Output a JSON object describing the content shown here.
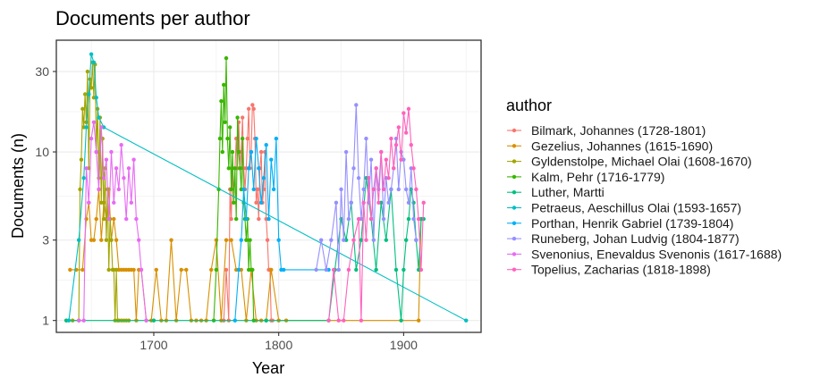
{
  "chart_data": {
    "type": "line",
    "title": "Documents per author",
    "xlabel": "Year",
    "ylabel": "Documents (n)",
    "x_scale": "linear",
    "y_scale": "log10",
    "xlim": [
      1622,
      1962
    ],
    "ylim": [
      0.85,
      46
    ],
    "x_ticks": [
      1700,
      1800,
      1900
    ],
    "y_ticks": [
      1,
      3,
      10,
      30
    ],
    "grid": true,
    "legend_title": "author",
    "legend_position": "right",
    "series": [
      {
        "name": "Bilmark, Johannes (1728-1801)",
        "color": "#F8766D",
        "x": [
          1756,
          1758,
          1760,
          1761,
          1762,
          1763,
          1764,
          1765,
          1766,
          1767,
          1768,
          1769,
          1770,
          1771,
          1772,
          1773,
          1774,
          1775,
          1776,
          1777,
          1778,
          1779,
          1780,
          1781,
          1782,
          1783,
          1784,
          1785,
          1786,
          1787,
          1788,
          1789,
          1790,
          1791,
          1792,
          1793,
          1794,
          1795
        ],
        "y": [
          1,
          2,
          1,
          6,
          4,
          8,
          5,
          8,
          12,
          8,
          15,
          8,
          10,
          16,
          8,
          6,
          8,
          12,
          18,
          8,
          10,
          19,
          18,
          12,
          5,
          6,
          4,
          8,
          10,
          5,
          6,
          10,
          4,
          3,
          2,
          2,
          1,
          1
        ]
      },
      {
        "name": "Gezelius, Johannes (1615-1690)",
        "color": "#D89000",
        "x": [
          1633,
          1638,
          1643,
          1646,
          1648,
          1650,
          1652,
          1654,
          1656,
          1658,
          1660,
          1662,
          1664,
          1666,
          1668,
          1670,
          1672,
          1674,
          1676,
          1678,
          1680,
          1682,
          1684,
          1686,
          1688,
          1690,
          1694,
          1698,
          1702,
          1706,
          1710,
          1714,
          1718,
          1722,
          1726,
          1730,
          1734,
          1738,
          1742,
          1746,
          1750,
          1754,
          1758,
          1762,
          1766,
          1770,
          1774,
          1778,
          1782,
          1786,
          1790,
          1794,
          1800,
          1806,
          1912,
          1914
        ],
        "y": [
          2,
          2,
          2,
          4,
          5,
          3,
          3,
          4,
          6,
          3,
          5,
          4,
          6,
          3,
          4,
          3,
          2,
          2,
          2,
          2,
          2,
          2,
          2,
          1,
          2,
          2,
          1,
          1,
          2,
          1,
          1,
          3,
          1,
          2,
          2,
          1,
          1,
          1,
          1,
          2,
          3,
          1,
          3,
          3,
          2,
          2,
          1,
          2,
          1,
          1,
          1,
          2,
          1,
          1,
          1,
          4
        ]
      },
      {
        "name": "Gyldenstolpe, Michael Olai (1608-1670)",
        "color": "#A3A500",
        "x": [
          1630,
          1635,
          1640,
          1641,
          1642,
          1643,
          1644,
          1645,
          1646,
          1647,
          1648,
          1649,
          1650,
          1651,
          1652,
          1653,
          1654,
          1655,
          1656,
          1657,
          1658,
          1659,
          1660,
          1661,
          1662,
          1663,
          1664,
          1665,
          1666,
          1667,
          1668,
          1669,
          1670,
          1671,
          1672,
          1674,
          1676,
          1678,
          1680
        ],
        "y": [
          1,
          1,
          1,
          6,
          9,
          18,
          14,
          22,
          15,
          30,
          8,
          27,
          24,
          34,
          21,
          33,
          10,
          18,
          7,
          16,
          5,
          12,
          4,
          8,
          3,
          6,
          2,
          4,
          3,
          2,
          2,
          1,
          2,
          1,
          1,
          1,
          1,
          1,
          1
        ]
      },
      {
        "name": "Kalm, Pehr (1716-1779)",
        "color": "#39B600",
        "x": [
          1748,
          1750,
          1752,
          1753,
          1754,
          1755,
          1756,
          1757,
          1758,
          1759,
          1760,
          1761,
          1762,
          1763,
          1764,
          1765,
          1766,
          1767,
          1768,
          1769,
          1770,
          1771,
          1772,
          1773,
          1774,
          1775,
          1776,
          1777,
          1778,
          1779,
          1780
        ],
        "y": [
          1,
          2,
          6,
          12,
          20,
          10,
          25,
          15,
          36,
          12,
          8,
          14,
          6,
          10,
          5,
          8,
          4,
          16,
          10,
          8,
          6,
          12,
          5,
          4,
          3,
          4,
          2,
          3,
          2,
          2,
          1
        ]
      },
      {
        "name": "Luther, Martti",
        "color": "#00BF7D",
        "x": [
          1630,
          1700,
          1790,
          1840,
          1845,
          1850,
          1854,
          1858,
          1862,
          1866,
          1870,
          1874,
          1878,
          1882,
          1886,
          1890,
          1894,
          1898,
          1900,
          1902,
          1904,
          1906,
          1908,
          1910,
          1912,
          1914,
          1916
        ],
        "y": [
          1,
          1,
          1,
          1,
          2,
          4,
          3,
          5,
          2,
          3,
          7,
          4,
          2,
          5,
          3,
          6,
          2,
          1,
          2,
          3,
          4,
          6,
          5,
          3,
          2,
          4,
          4
        ]
      },
      {
        "name": "Petraeus, Aeschillus Olai (1593-1657)",
        "color": "#00BFC4",
        "x": [
          1632,
          1640,
          1644,
          1646,
          1648,
          1650,
          1652,
          1654,
          1656,
          1660,
          1950
        ],
        "y": [
          1,
          3,
          7,
          14,
          22,
          38,
          34,
          21,
          16,
          14,
          1
        ]
      },
      {
        "name": "Porthan, Henrik Gabriel (1739-1804)",
        "color": "#00B0F6",
        "x": [
          1765,
          1768,
          1770,
          1772,
          1774,
          1776,
          1778,
          1780,
          1782,
          1784,
          1786,
          1788,
          1790,
          1792,
          1794,
          1796,
          1798,
          1800,
          1802,
          1804,
          1840
        ],
        "y": [
          1,
          2,
          3,
          6,
          4,
          8,
          10,
          6,
          12,
          8,
          5,
          7,
          11,
          4,
          9,
          6,
          12,
          3,
          2,
          2,
          2
        ]
      },
      {
        "name": "Runeberg, Johan Ludvig (1804-1877)",
        "color": "#9590FF",
        "x": [
          1830,
          1834,
          1838,
          1842,
          1846,
          1848,
          1850,
          1852,
          1854,
          1856,
          1858,
          1860,
          1862,
          1864,
          1866,
          1868,
          1870,
          1872,
          1874,
          1876,
          1878,
          1880,
          1882,
          1884,
          1886,
          1888,
          1890,
          1892,
          1894,
          1896,
          1898,
          1900,
          1902,
          1904,
          1906,
          1908,
          1910
        ],
        "y": [
          2,
          3,
          2,
          3,
          5,
          2,
          6,
          3,
          10,
          4,
          5,
          8,
          19,
          7,
          4,
          6,
          12,
          5,
          9,
          3,
          8,
          6,
          10,
          4,
          7,
          5,
          6,
          8,
          12,
          6,
          10,
          9,
          6,
          5,
          8,
          4,
          3
        ]
      },
      {
        "name": "Svenonius, Enevaldus Svenonis (1617-1688)",
        "color": "#E76BF3",
        "x": [
          1640,
          1644,
          1646,
          1648,
          1650,
          1652,
          1654,
          1656,
          1658,
          1660,
          1662,
          1664,
          1666,
          1668,
          1670,
          1672,
          1674,
          1676,
          1678,
          1680,
          1682,
          1684,
          1686,
          1688,
          1690,
          1694
        ],
        "y": [
          1,
          1,
          8,
          5,
          12,
          15,
          10,
          6,
          14,
          7,
          9,
          4,
          10,
          5,
          8,
          6,
          11,
          7,
          4,
          8,
          5,
          9,
          4,
          3,
          2,
          1
        ]
      },
      {
        "name": "Topelius, Zacharias (1818-1898)",
        "color": "#FF62BC",
        "x": [
          1840,
          1844,
          1848,
          1852,
          1856,
          1860,
          1864,
          1866,
          1868,
          1870,
          1872,
          1874,
          1876,
          1878,
          1880,
          1882,
          1884,
          1886,
          1888,
          1890,
          1892,
          1894,
          1896,
          1898,
          1900,
          1902,
          1904,
          1906,
          1908,
          1910,
          1912,
          1914,
          1916
        ],
        "y": [
          1,
          2,
          1,
          1,
          2,
          3,
          4,
          1,
          5,
          3,
          7,
          4,
          6,
          8,
          5,
          10,
          6,
          9,
          7,
          12,
          8,
          11,
          14,
          9,
          17,
          13,
          18,
          11,
          8,
          6,
          4,
          2,
          5
        ]
      }
    ]
  }
}
